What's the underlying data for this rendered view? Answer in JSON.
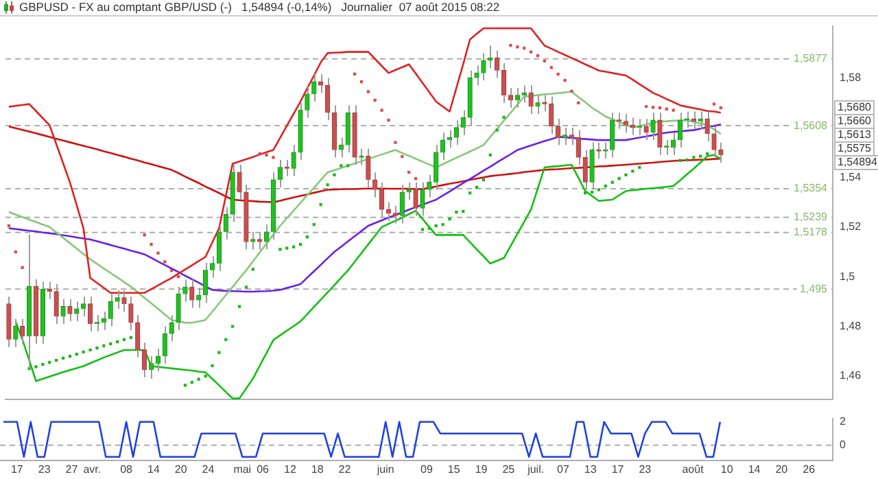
{
  "chart_data": [
    {
      "type": "candlestick",
      "title": "GBPUSD - FX au comptant GBP/USD (-)   1,54894 (-0,14%)   Journalier  07 août 2015 08:22",
      "categories": [
        null,
        null,
        null,
        null,
        null,
        null,
        null,
        null,
        null,
        null,
        null,
        null,
        null,
        null,
        null,
        null,
        null,
        null,
        null,
        null,
        null,
        null,
        null,
        null,
        null,
        null,
        null,
        null,
        null,
        null,
        null,
        null,
        null,
        null,
        null,
        null,
        null,
        null,
        null,
        null,
        null,
        null,
        null,
        null,
        null,
        null,
        null,
        null,
        null,
        null,
        null,
        null,
        null,
        null,
        null,
        null,
        null,
        null,
        null,
        null,
        null,
        null,
        null,
        null,
        null,
        null,
        null,
        null,
        null,
        null,
        null,
        null,
        null,
        null,
        null,
        null,
        null,
        null,
        null,
        null,
        null,
        null,
        null,
        null,
        null,
        null,
        null,
        null,
        null,
        null,
        null,
        null,
        null,
        null,
        null,
        null,
        null,
        null,
        null,
        null,
        null,
        null,
        null,
        null,
        null,
        null,
        null,
        null,
        null,
        null,
        null,
        null,
        null,
        null,
        null,
        null,
        null,
        null,
        null,
        null,
        null,
        null
      ],
      "ohlc": [
        [
          1.489,
          1.492,
          1.4717,
          1.4747
        ],
        [
          1.4747,
          1.483,
          1.4717,
          1.48
        ],
        [
          1.48,
          1.483,
          1.473,
          1.476
        ],
        [
          1.476,
          1.517,
          1.463,
          1.496
        ],
        [
          1.496,
          1.499,
          1.473,
          1.476
        ],
        [
          1.476,
          1.498,
          1.473,
          1.495
        ],
        [
          1.495,
          1.498,
          1.491,
          1.494
        ],
        [
          1.494,
          1.497,
          1.481,
          1.484
        ],
        [
          1.484,
          1.491,
          1.481,
          1.488
        ],
        [
          1.488,
          1.491,
          1.482,
          1.485
        ],
        [
          1.485,
          1.49,
          1.482,
          1.487
        ],
        [
          1.487,
          1.492,
          1.484,
          1.489
        ],
        [
          1.489,
          1.492,
          1.478,
          1.481
        ],
        [
          1.481,
          1.4845,
          1.478,
          1.4815
        ],
        [
          1.4815,
          1.486,
          1.4785,
          1.483
        ],
        [
          1.483,
          1.493,
          1.48,
          1.49
        ],
        [
          1.49,
          1.4945,
          1.487,
          1.4915
        ],
        [
          1.4915,
          1.4945,
          1.486,
          1.489
        ],
        [
          1.489,
          1.492,
          1.4785,
          1.4815
        ],
        [
          1.4815,
          1.4845,
          1.4675,
          1.4705
        ],
        [
          1.4705,
          1.4735,
          1.4595,
          1.4625
        ],
        [
          1.4625,
          1.468,
          1.459,
          1.465
        ],
        [
          1.465,
          1.471,
          1.462,
          1.468
        ],
        [
          1.468,
          1.48,
          1.465,
          1.477
        ],
        [
          1.477,
          1.4845,
          1.474,
          1.4815
        ],
        [
          1.4815,
          1.496,
          1.4785,
          1.493
        ],
        [
          1.493,
          1.4988,
          1.49,
          1.4958
        ],
        [
          1.4958,
          1.4988,
          1.4875,
          1.4905
        ],
        [
          1.4905,
          1.4955,
          1.4875,
          1.4925
        ],
        [
          1.4925,
          1.5056,
          1.4895,
          1.5026
        ],
        [
          1.5026,
          1.5083,
          1.4996,
          1.5053
        ],
        [
          1.5053,
          1.521,
          1.5023,
          1.518
        ],
        [
          1.518,
          1.528,
          1.515,
          1.525
        ],
        [
          1.525,
          1.545,
          1.522,
          1.542
        ],
        [
          1.542,
          1.545,
          1.531,
          1.534
        ],
        [
          1.534,
          1.537,
          1.511,
          1.514
        ],
        [
          1.514,
          1.518,
          1.511,
          1.515
        ],
        [
          1.515,
          1.518,
          1.511,
          1.514
        ],
        [
          1.514,
          1.521,
          1.511,
          1.518
        ],
        [
          1.518,
          1.542,
          1.515,
          1.539
        ],
        [
          1.539,
          1.547,
          1.536,
          1.544
        ],
        [
          1.544,
          1.547,
          1.5405,
          1.5435
        ],
        [
          1.5435,
          1.553,
          1.5405,
          1.55
        ],
        [
          1.55,
          1.57,
          1.547,
          1.567
        ],
        [
          1.567,
          1.5765,
          1.564,
          1.5735
        ],
        [
          1.5735,
          1.5815,
          1.5705,
          1.5785
        ],
        [
          1.5785,
          1.5815,
          1.574,
          1.577
        ],
        [
          1.577,
          1.58,
          1.563,
          1.566
        ],
        [
          1.566,
          1.569,
          1.548,
          1.551
        ],
        [
          1.551,
          1.556,
          1.548,
          1.553
        ],
        [
          1.553,
          1.569,
          1.55,
          1.566
        ],
        [
          1.566,
          1.569,
          1.545,
          1.548
        ],
        [
          1.548,
          1.5515,
          1.545,
          1.5485
        ],
        [
          1.5485,
          1.5515,
          1.536,
          1.539
        ],
        [
          1.539,
          1.542,
          1.532,
          1.535
        ],
        [
          1.535,
          1.538,
          1.524,
          1.527
        ],
        [
          1.527,
          1.53,
          1.5225,
          1.5255
        ],
        [
          1.5255,
          1.5285,
          1.5215,
          1.5245
        ],
        [
          1.5245,
          1.537,
          1.5215,
          1.534
        ],
        [
          1.534,
          1.538,
          1.531,
          1.535
        ],
        [
          1.535,
          1.538,
          1.5245,
          1.5275
        ],
        [
          1.5275,
          1.538,
          1.5245,
          1.535
        ],
        [
          1.535,
          1.541,
          1.532,
          1.538
        ],
        [
          1.538,
          1.553,
          1.535,
          1.55
        ],
        [
          1.55,
          1.558,
          1.547,
          1.555
        ],
        [
          1.555,
          1.559,
          1.552,
          1.556
        ],
        [
          1.556,
          1.563,
          1.553,
          1.56
        ],
        [
          1.56,
          1.567,
          1.557,
          1.564
        ],
        [
          1.564,
          1.583,
          1.561,
          1.58
        ],
        [
          1.58,
          1.585,
          1.577,
          1.582
        ],
        [
          1.582,
          1.59,
          1.579,
          1.587
        ],
        [
          1.587,
          1.593,
          1.584,
          1.588
        ],
        [
          1.588,
          1.591,
          1.58,
          1.583
        ],
        [
          1.583,
          1.586,
          1.57,
          1.573
        ],
        [
          1.573,
          1.576,
          1.568,
          1.571
        ],
        [
          1.571,
          1.576,
          1.568,
          1.573
        ],
        [
          1.573,
          1.577,
          1.57,
          1.574
        ],
        [
          1.574,
          1.577,
          1.5655,
          1.5685
        ],
        [
          1.5685,
          1.573,
          1.5655,
          1.57
        ],
        [
          1.57,
          1.573,
          1.5665,
          1.5695
        ],
        [
          1.5695,
          1.5725,
          1.5575,
          1.5605
        ],
        [
          1.5605,
          1.5635,
          1.553,
          1.556
        ],
        [
          1.556,
          1.56,
          1.553,
          1.557
        ],
        [
          1.557,
          1.56,
          1.553,
          1.556
        ],
        [
          1.556,
          1.559,
          1.545,
          1.548
        ],
        [
          1.548,
          1.551,
          1.535,
          1.538
        ],
        [
          1.538,
          1.554,
          1.535,
          1.551
        ],
        [
          1.551,
          1.554,
          1.5475,
          1.5505
        ],
        [
          1.5505,
          1.554,
          1.5475,
          1.551
        ],
        [
          1.551,
          1.566,
          1.548,
          1.563
        ],
        [
          1.563,
          1.566,
          1.5595,
          1.5625
        ],
        [
          1.5625,
          1.5655,
          1.558,
          1.561
        ],
        [
          1.561,
          1.564,
          1.557,
          1.56
        ],
        [
          1.56,
          1.5635,
          1.557,
          1.5605
        ],
        [
          1.5605,
          1.5635,
          1.555,
          1.558
        ],
        [
          1.558,
          1.566,
          1.555,
          1.563
        ],
        [
          1.563,
          1.566,
          1.549,
          1.552
        ],
        [
          1.552,
          1.555,
          1.549,
          1.552
        ],
        [
          1.552,
          1.558,
          1.549,
          1.555
        ],
        [
          1.555,
          1.566,
          1.552,
          1.563
        ],
        [
          1.563,
          1.5665,
          1.56,
          1.5635
        ],
        [
          1.5635,
          1.5665,
          1.5595,
          1.5625
        ],
        [
          1.5625,
          1.5665,
          1.5595,
          1.5635
        ],
        [
          1.5635,
          1.5665,
          1.5545,
          1.5575
        ],
        [
          1.5575,
          1.5605,
          1.548,
          1.551
        ],
        [
          1.551,
          1.554,
          1.5459,
          1.54894
        ],
        null,
        null,
        null,
        null,
        null,
        null,
        null,
        null,
        null,
        null,
        null,
        null,
        null,
        null,
        null,
        null
      ],
      "series": [
        {
          "type": "line",
          "color": "#e02020",
          "values": [
            1.5684,
            1.5688,
            1.5691,
            1.5695,
            1.5667,
            1.5638,
            1.561,
            1.5533,
            1.5457,
            1.538,
            1.5288,
            1.5195,
            1.4995,
            1.4975,
            1.4955,
            1.4935,
            1.4935,
            1.4935,
            1.4935,
            1.4935,
            1.4935,
            1.495,
            1.4965,
            1.498,
            1.4995,
            1.5012,
            1.5029,
            1.5046,
            1.5063,
            1.508,
            1.5138,
            1.5195,
            1.5325,
            1.5455,
            1.5464,
            1.5473,
            1.5482,
            1.5492,
            1.5501,
            1.551,
            1.5559,
            1.5608,
            1.5656,
            1.5705,
            1.5758,
            1.581,
            1.5863,
            1.59,
            1.5902,
            1.5903,
            1.5905,
            1.5905,
            1.5905,
            1.5905,
            1.5877,
            1.5848,
            1.582,
            1.5832,
            1.5843,
            1.5855,
            1.5818,
            1.578,
            1.5743,
            1.5705,
            1.5685,
            1.5665,
            1.576,
            1.5855,
            1.5955,
            1.5978,
            1.6,
            1.6,
            1.6,
            1.6,
            1.6,
            1.6,
            1.6,
            1.6,
            1.5965,
            1.593,
            1.5918,
            1.5905,
            1.5893,
            1.588,
            1.5868,
            1.5855,
            1.5843,
            1.583,
            1.5825,
            1.582,
            1.5815,
            1.581,
            1.5793,
            1.5775,
            1.5758,
            1.574,
            1.5728,
            1.5715,
            1.5703,
            1.569,
            1.5684,
            1.5679,
            1.5673,
            1.5667,
            1.5665,
            1.566,
            null,
            null,
            null,
            null,
            null,
            null,
            null,
            null,
            null,
            null,
            null,
            null,
            null,
            null,
            null,
            null
          ]
        },
        {
          "type": "line",
          "color": "#10c010",
          "values": [
            null,
            1.4819,
            1.4747,
            1.4664,
            1.458,
            1.4589,
            1.4598,
            1.4607,
            1.4616,
            1.4624,
            1.4632,
            1.464,
            1.4652,
            1.4663,
            1.4675,
            1.4685,
            1.4695,
            1.4705,
            1.4705,
            1.4705,
            1.4705,
            1.464,
            1.4637,
            1.4634,
            1.4631,
            1.4628,
            1.4625,
            1.4622,
            1.4618,
            1.4615,
            1.4589,
            1.4563,
            1.4536,
            1.451,
            1.451,
            1.455,
            1.459,
            1.4642,
            1.4693,
            1.4745,
            1.4764,
            1.4783,
            1.4801,
            1.482,
            1.4849,
            1.4879,
            1.4908,
            1.4937,
            1.4966,
            1.4996,
            1.5025,
            1.506,
            1.5095,
            1.513,
            1.5165,
            1.52,
            1.5213,
            1.5225,
            1.5238,
            1.5252,
            1.5265,
            1.5233,
            1.52,
            1.5168,
            1.5168,
            1.5168,
            1.5168,
            1.5168,
            1.5139,
            1.511,
            1.5082,
            1.5053,
            1.5064,
            1.5075,
            1.5124,
            1.5173,
            1.5221,
            1.527,
            1.5355,
            1.544,
            1.5443,
            1.5445,
            1.5448,
            1.545,
            1.5398,
            1.5345,
            1.5325,
            1.5305,
            1.5308,
            1.531,
            1.5328,
            1.5345,
            1.5348,
            1.5351,
            1.5354,
            1.5356,
            1.5359,
            1.5362,
            1.5365,
            1.5388,
            1.5412,
            1.5435,
            1.546,
            1.5485,
            1.549,
            1.5475,
            null,
            null,
            null,
            null,
            null,
            null,
            null,
            null,
            null,
            null,
            null,
            null,
            null,
            null,
            null,
            null
          ]
        },
        {
          "type": "line",
          "color": "#86c878",
          "values": [
            1.526,
            1.525,
            1.524,
            1.523,
            1.522,
            1.521,
            1.52,
            1.5178,
            1.5157,
            1.5135,
            1.5113,
            1.5092,
            1.507,
            1.5052,
            1.5033,
            1.5015,
            1.4997,
            1.4978,
            1.496,
            1.4938,
            1.4915,
            1.4893,
            1.4871,
            1.4848,
            1.4826,
            1.482,
            1.4815,
            1.4815,
            1.482,
            1.4826,
            1.4859,
            1.4893,
            1.4926,
            1.4959,
            1.4993,
            1.5026,
            1.5062,
            1.5098,
            1.5133,
            1.5169,
            1.5205,
            1.5236,
            1.5266,
            1.5297,
            1.5328,
            1.5358,
            1.5389,
            1.542,
            1.5429,
            1.5438,
            1.5447,
            1.5456,
            1.5465,
            1.5474,
            1.5483,
            1.5492,
            1.5501,
            1.551,
            1.5498,
            1.5487,
            1.5475,
            1.5463,
            1.5452,
            1.544,
            1.5453,
            1.5466,
            1.5479,
            1.5491,
            1.5504,
            1.5517,
            1.553,
            1.5563,
            1.5595,
            1.5628,
            1.566,
            1.5693,
            1.5725,
            1.5728,
            1.5731,
            1.5734,
            1.5736,
            1.5739,
            1.5742,
            1.5745,
            1.5723,
            1.5702,
            1.568,
            1.5663,
            1.5645,
            1.5634,
            1.5623,
            1.5611,
            1.56,
            1.5606,
            1.5613,
            1.5619,
            1.5625,
            1.5626,
            1.5628,
            1.5629,
            1.563,
            1.5623,
            1.5617,
            1.561,
            1.5593,
            1.5575,
            null,
            null,
            null,
            null,
            null,
            null,
            null,
            null,
            null,
            null,
            null,
            null,
            null,
            null,
            null,
            null
          ]
        },
        {
          "type": "line",
          "color": "#6a1fe8",
          "values": [
            1.5195,
            1.5192,
            1.5188,
            1.5185,
            1.5182,
            1.5178,
            1.5175,
            1.5171,
            1.5167,
            1.5163,
            1.5158,
            1.5154,
            1.515,
            1.5143,
            1.5135,
            1.5128,
            1.512,
            1.5113,
            1.5105,
            1.5098,
            1.509,
            1.5076,
            1.5061,
            1.5047,
            1.5033,
            1.5019,
            1.5004,
            1.499,
            1.4976,
            1.4961,
            1.4947,
            1.4945,
            1.4943,
            1.4942,
            1.4941,
            1.494,
            1.494,
            1.4941,
            1.4942,
            1.4944,
            1.4947,
            1.4955,
            1.4962,
            1.497,
            1.4996,
            1.5022,
            1.5048,
            1.5074,
            1.51,
            1.5121,
            1.5142,
            1.5163,
            1.5184,
            1.5205,
            1.5216,
            1.5227,
            1.5238,
            1.5248,
            1.5259,
            1.527,
            1.528,
            1.529,
            1.53,
            1.531,
            1.5327,
            1.5343,
            1.536,
            1.5377,
            1.5393,
            1.541,
            1.5427,
            1.5443,
            1.546,
            1.5477,
            1.5493,
            1.551,
            1.5519,
            1.5528,
            1.5537,
            1.5546,
            1.5554,
            1.5563,
            1.5561,
            1.5559,
            1.5556,
            1.5554,
            1.5552,
            1.555,
            1.555,
            1.555,
            1.555,
            1.555,
            1.5555,
            1.556,
            1.5565,
            1.557,
            1.5575,
            1.558,
            1.5583,
            1.5585,
            1.5588,
            1.559,
            1.5596,
            1.5602,
            1.5607,
            1.5613,
            null,
            null,
            null,
            null,
            null,
            null,
            null,
            null,
            null,
            null,
            null,
            null,
            null,
            null,
            null,
            null
          ]
        },
        {
          "type": "line",
          "color": "#d01010",
          "values": [
            1.5605,
            1.5598,
            1.5591,
            1.5584,
            1.5577,
            1.557,
            1.5563,
            1.5555,
            1.5548,
            1.5541,
            1.5534,
            1.5527,
            1.552,
            1.5513,
            1.5505,
            1.5498,
            1.549,
            1.5483,
            1.5475,
            1.5468,
            1.546,
            1.5453,
            1.5445,
            1.5438,
            1.543,
            1.5417,
            1.5403,
            1.539,
            1.5377,
            1.5363,
            1.535,
            1.5337,
            1.5323,
            1.531,
            1.5308,
            1.5306,
            1.5304,
            1.5302,
            1.5301,
            1.53,
            1.5306,
            1.5313,
            1.5319,
            1.5325,
            1.5331,
            1.5338,
            1.5344,
            1.535,
            1.5351,
            1.5352,
            1.5353,
            1.5353,
            1.5354,
            1.5355,
            1.5355,
            1.5355,
            1.5354,
            1.5354,
            1.5354,
            1.5354,
            1.5353,
            1.5353,
            1.5358,
            1.5363,
            1.5369,
            1.5374,
            1.5379,
            1.5384,
            1.539,
            1.5395,
            1.54,
            1.5405,
            1.5408,
            1.5411,
            1.5414,
            1.5417,
            1.5421,
            1.5424,
            1.5427,
            1.543,
            1.5432,
            1.5433,
            1.5435,
            1.5437,
            1.5438,
            1.544,
            1.5442,
            1.5444,
            1.5445,
            1.5447,
            1.5449,
            1.5451,
            1.5453,
            1.5455,
            1.5457,
            1.5459,
            1.5462,
            1.5464,
            1.5466,
            1.5468,
            1.5469,
            1.547,
            1.5471,
            1.5472,
            1.5474,
            1.5475,
            null,
            null,
            null,
            null,
            null,
            null,
            null,
            null,
            null,
            null,
            null,
            null,
            null,
            null,
            null,
            null
          ]
        },
        {
          "type": "scatter",
          "marker": "square",
          "color": "#e04848",
          "values": [
            1.5205,
            1.51,
            1.5037,
            null,
            null,
            null,
            null,
            null,
            null,
            null,
            null,
            null,
            null,
            null,
            null,
            null,
            null,
            null,
            null,
            null,
            1.5168,
            1.513,
            1.5095,
            1.506,
            1.5025,
            1.5,
            null,
            null,
            null,
            null,
            null,
            null,
            null,
            null,
            null,
            null,
            null,
            1.5495,
            1.549,
            1.548,
            null,
            null,
            null,
            null,
            null,
            null,
            null,
            null,
            null,
            null,
            null,
            1.5816,
            1.5785,
            1.5745,
            1.571,
            1.567,
            1.563,
            1.554,
            1.5484,
            1.542,
            1.5395,
            null,
            null,
            null,
            null,
            null,
            null,
            null,
            null,
            null,
            null,
            null,
            null,
            null,
            1.5931,
            1.5925,
            1.592,
            1.5905,
            1.589,
            1.5868,
            1.5842,
            1.5815,
            1.579,
            1.5747,
            1.57,
            null,
            null,
            null,
            null,
            null,
            null,
            null,
            null,
            null,
            1.5685,
            1.5682,
            1.568,
            1.5675,
            1.567,
            null,
            null,
            null,
            null,
            null,
            1.5695,
            1.568,
            null,
            null,
            null,
            null,
            null,
            null,
            null,
            null,
            null,
            null,
            null,
            null,
            null,
            null,
            null,
            null
          ]
        },
        {
          "type": "scatter",
          "marker": "square",
          "color": "#18b818",
          "values": [
            null,
            null,
            null,
            1.463,
            1.4638,
            1.4647,
            1.4655,
            1.4663,
            1.4672,
            1.468,
            1.4688,
            1.4697,
            1.4705,
            1.4713,
            1.4722,
            1.473,
            1.4738,
            1.4747,
            1.4755,
            null,
            null,
            null,
            null,
            null,
            null,
            null,
            1.4563,
            1.4575,
            1.4587,
            1.46,
            1.4642,
            1.4695,
            1.4747,
            1.48,
            1.488,
            1.4958,
            1.503,
            null,
            null,
            null,
            1.511,
            1.5115,
            1.512,
            1.513,
            1.516,
            1.521,
            1.529,
            1.537,
            1.541,
            1.5447,
            1.5447,
            null,
            null,
            null,
            null,
            null,
            null,
            null,
            null,
            null,
            null,
            1.519,
            1.5195,
            1.5205,
            1.521,
            1.5232,
            1.526,
            1.5263,
            1.5337,
            1.536,
            1.539,
            1.549,
            1.559,
            1.5642,
            null,
            null,
            null,
            null,
            null,
            null,
            null,
            null,
            null,
            null,
            null,
            1.5337,
            1.534,
            1.535,
            1.5365,
            1.538,
            1.5395,
            1.541,
            1.5425,
            1.544,
            null,
            null,
            null,
            null,
            null,
            1.5468,
            1.547,
            1.548,
            1.5485,
            1.5495,
            null,
            null,
            null,
            null,
            null,
            null,
            null,
            null,
            null,
            null,
            null,
            null,
            null,
            null,
            null,
            null,
            null,
            null
          ]
        }
      ],
      "tick_labels": "y",
      "ylim": [
        1.4505,
        1.601
      ],
      "yticks": [
        {
          "value": 1.46,
          "label": "1,46"
        },
        {
          "value": 1.48,
          "label": "1,48"
        },
        {
          "value": 1.5,
          "label": "1,5"
        },
        {
          "value": 1.52,
          "label": "1,52"
        },
        {
          "value": 1.54,
          "label": "1,54"
        },
        {
          "value": 1.58,
          "label": "1,58"
        }
      ],
      "ref_lines": [
        {
          "axis": "y",
          "value": 1.5877,
          "label": "1,5877",
          "color": "#a8b0a8",
          "line_style": "dashed"
        },
        {
          "axis": "y",
          "value": 1.5608,
          "label": "1,5608",
          "color": "#a8b0a8",
          "line_style": "dashed"
        },
        {
          "axis": "y",
          "value": 1.5354,
          "label": "1,5354",
          "color": "#a8b0a8",
          "line_style": "dashed"
        },
        {
          "axis": "y",
          "value": 1.5239,
          "label": "1,5239",
          "color": "#a8b0a8",
          "line_style": "dashed"
        },
        {
          "axis": "y",
          "value": 1.5178,
          "label": "1,5178",
          "color": "#a8b0a8",
          "line_style": "dashed"
        },
        {
          "axis": "y",
          "value": 1.495,
          "label": "1,495",
          "color": "#a8b0a8",
          "line_style": "dashed"
        }
      ],
      "annotations": [
        {
          "text": "1,5680",
          "y": 1.568
        },
        "1,5660",
        "1,5613",
        "1,5575",
        "1,54894"
      ]
    },
    {
      "type": "line",
      "categories": [
        null,
        null,
        "17",
        null,
        null,
        null,
        "23",
        null,
        null,
        null,
        "27",
        null,
        null,
        "avr.",
        null,
        null,
        null,
        null,
        "08",
        null,
        null,
        null,
        "14",
        null,
        null,
        null,
        "20",
        null,
        null,
        null,
        "24",
        null,
        null,
        null,
        null,
        "mai",
        null,
        null,
        "06",
        null,
        null,
        null,
        "12",
        null,
        null,
        null,
        "18",
        null,
        null,
        null,
        "22",
        null,
        null,
        null,
        null,
        null,
        "juin",
        null,
        null,
        null,
        null,
        null,
        "09",
        null,
        null,
        null,
        "15",
        null,
        null,
        null,
        "19",
        null,
        null,
        null,
        "25",
        null,
        null,
        null,
        "juil.",
        null,
        null,
        null,
        "07",
        null,
        null,
        null,
        "13",
        null,
        null,
        null,
        "17",
        null,
        null,
        null,
        "23",
        null,
        null,
        null,
        null,
        null,
        null,
        "août",
        null,
        null,
        null,
        null,
        "10",
        null,
        null,
        null,
        "14",
        null,
        null,
        null,
        "20",
        null,
        null,
        null,
        "26",
        null,
        null,
        null
      ],
      "series": [
        {
          "type": "line",
          "color": "#2040e0",
          "values": [
            2,
            2,
            2,
            -1,
            2,
            -1,
            -1,
            2,
            2,
            2,
            2,
            2,
            2,
            2,
            2,
            -1,
            -1,
            -1,
            2,
            -1,
            2,
            2,
            2,
            -1,
            -1,
            -1,
            -1,
            -1,
            -1,
            1,
            1,
            1,
            1,
            1,
            1,
            -1,
            -1,
            -1,
            1,
            1,
            1,
            1,
            1,
            1,
            1,
            1,
            1,
            1,
            -1,
            1,
            -1,
            -1,
            -1,
            -1,
            -1,
            -1,
            2,
            -1,
            2,
            -1,
            -1,
            2,
            2,
            2,
            1,
            1,
            1,
            1,
            1,
            1,
            1,
            1,
            1,
            1,
            1,
            1,
            1,
            -1,
            1,
            -1,
            -1,
            -1,
            -1,
            -1,
            2,
            2,
            -1,
            -1,
            2,
            1,
            1,
            1,
            1,
            -1,
            1,
            2,
            2,
            2,
            1,
            1,
            1,
            1,
            1,
            -1,
            -1,
            2,
            null,
            null,
            null,
            null,
            null,
            null,
            null,
            null,
            null,
            null,
            null,
            null,
            null,
            null,
            null,
            null
          ]
        }
      ],
      "ylim": [
        -1.3,
        2.3
      ],
      "yticks": [
        0,
        2
      ],
      "ref_lines": [
        {
          "axis": "y",
          "value": 0,
          "color": "#a8b0a8",
          "line_style": "dashed"
        }
      ]
    }
  ]
}
